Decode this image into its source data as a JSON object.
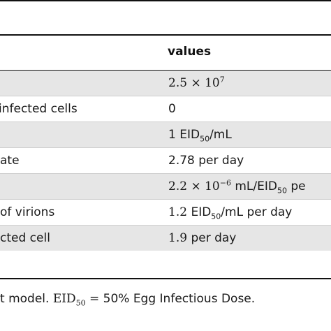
{
  "table": {
    "header": {
      "values_label": "values"
    },
    "rows": [
      {
        "description": "",
        "value_base": "2.5 × 10",
        "value_exp": "7"
      },
      {
        "description": " infected cells",
        "value": "0"
      },
      {
        "description": "",
        "value_pre": "1 EID",
        "value_sub": "50",
        "value_post": "/mL"
      },
      {
        "description": "ate",
        "value": "2.78 per day"
      },
      {
        "description": "",
        "value_base": "2.2 × 10",
        "value_exp": "−6",
        "value_post": " mL/EID",
        "value_sub": "50",
        "value_tail": " pe"
      },
      {
        "description": "of virions",
        "value_num": "1.2",
        "value_pre": " EID",
        "value_sub": "50",
        "value_post": "/mL per day"
      },
      {
        "description": "cted cell",
        "value_num": "1.9",
        "value_post": " per day"
      }
    ]
  },
  "footnote": {
    "prefix": "t model. ",
    "eid": "EID",
    "eid_sub": "50",
    "suffix": " = 50% Egg Infectious Dose."
  }
}
